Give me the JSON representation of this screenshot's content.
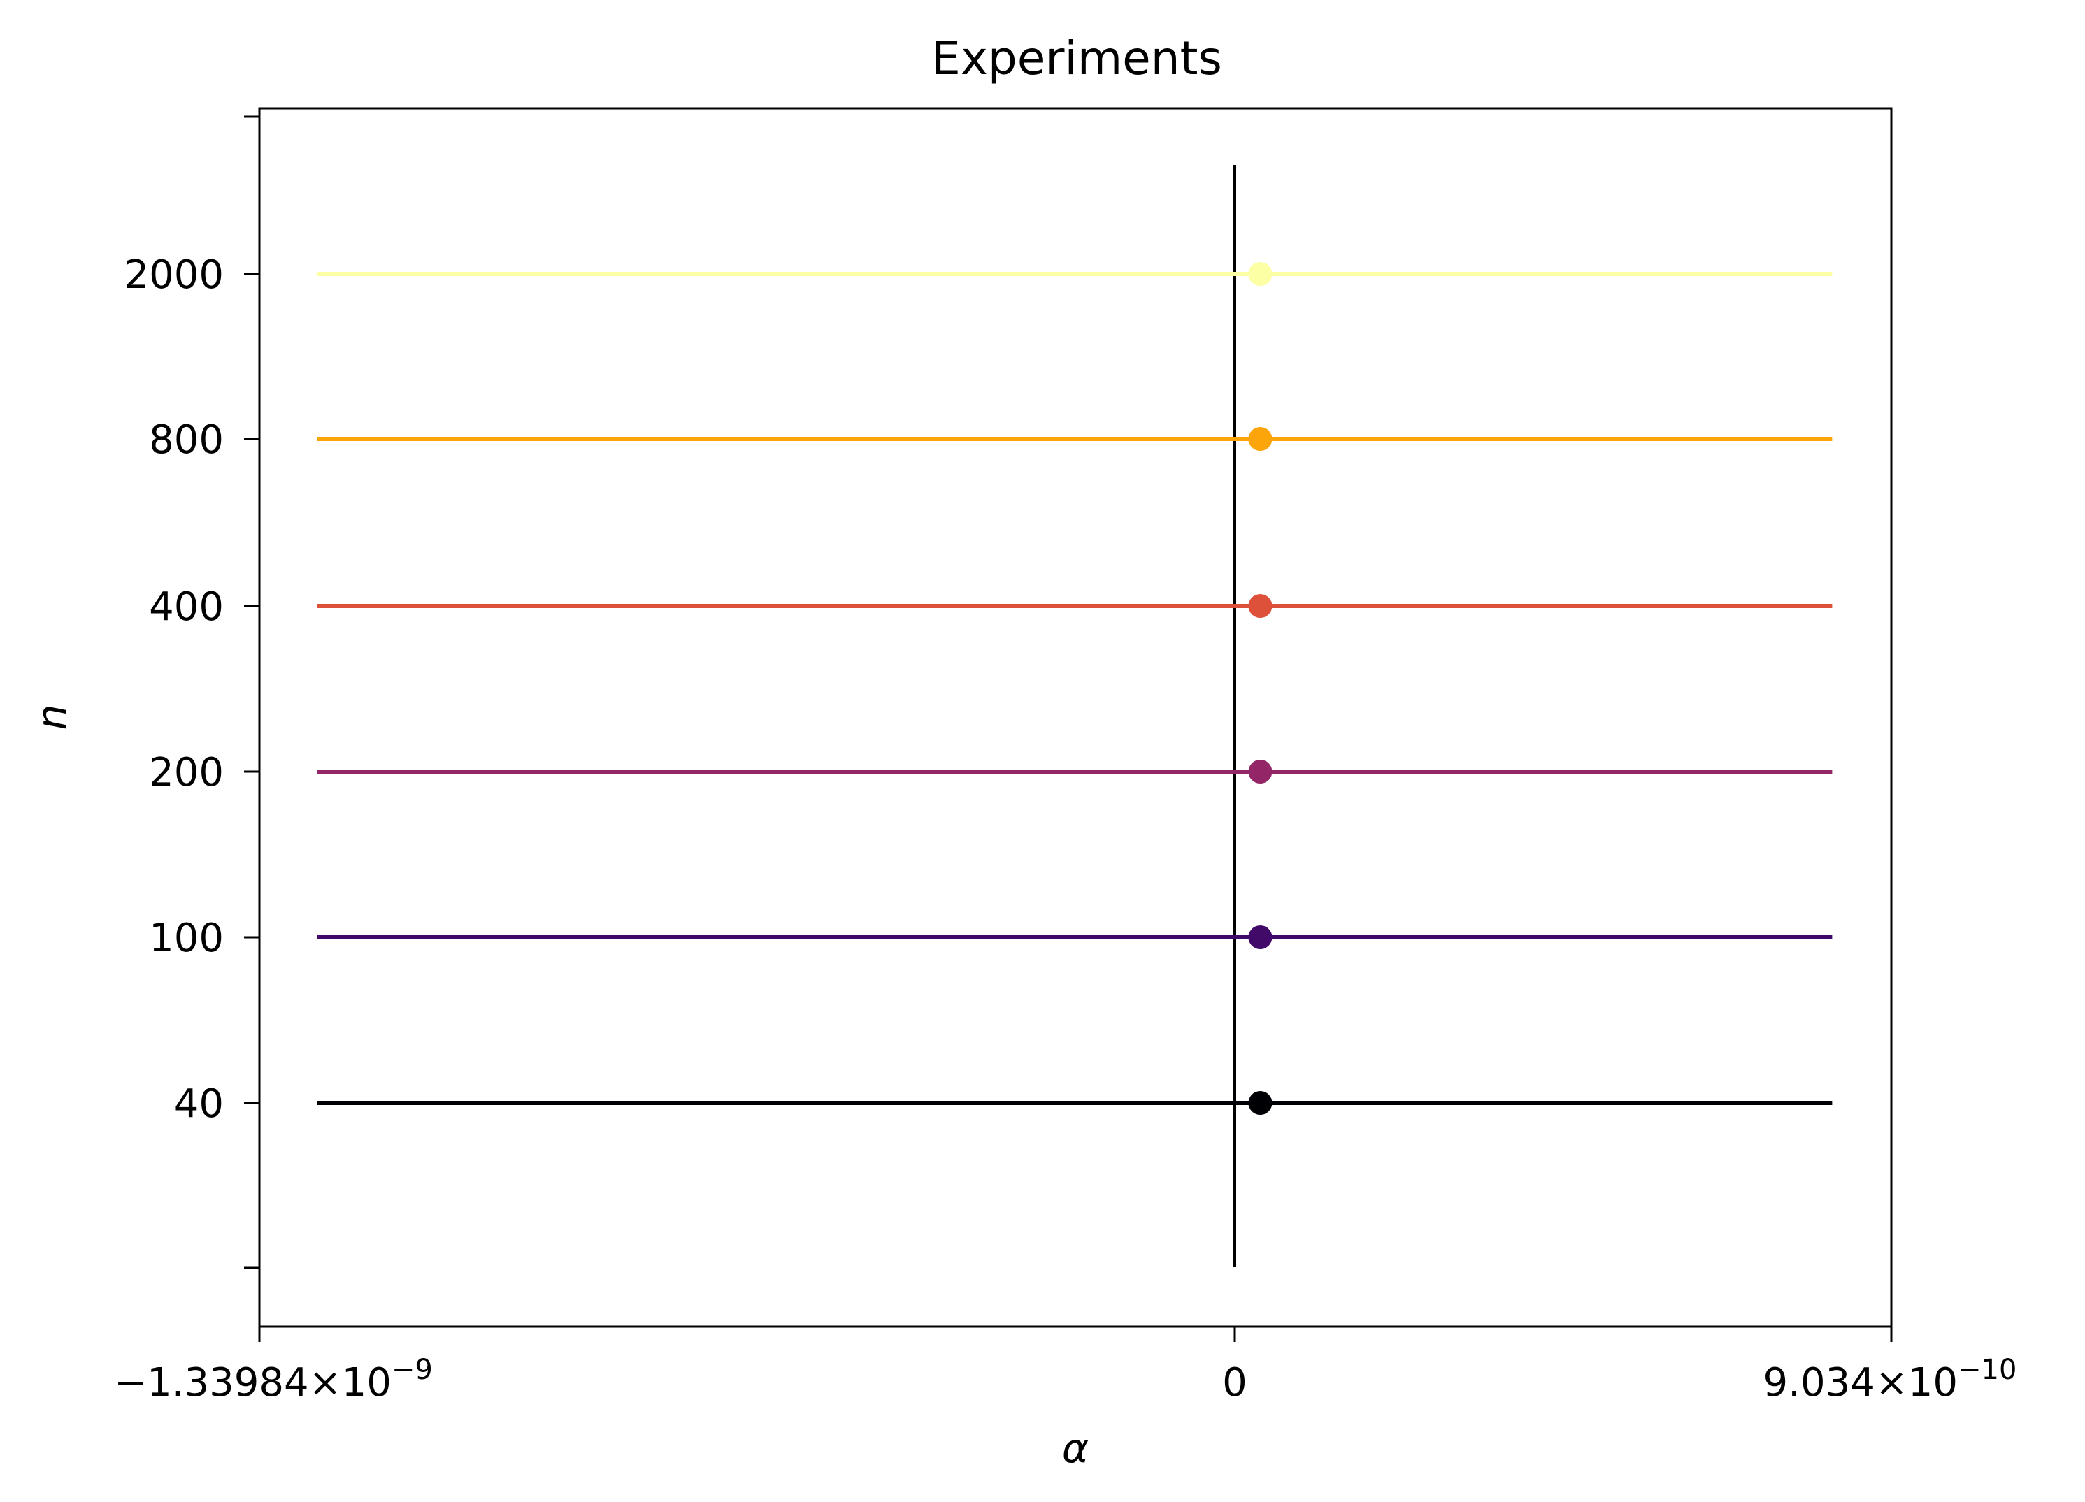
{
  "chart_data": {
    "type": "scatter",
    "title": "Experiments",
    "xlabel": "α",
    "ylabel": "n",
    "x_ticks": [
      {
        "mantissa": "−1.33984",
        "exponent": "−9"
      },
      {
        "plain": "0"
      },
      {
        "mantissa": "9.034",
        "exponent": "−10"
      }
    ],
    "y_ticks": [
      "2000",
      "800",
      "400",
      "200",
      "100",
      "40"
    ],
    "reference_line": {
      "x": 0,
      "color": "#000000"
    },
    "grid": false,
    "legend": "none",
    "series": [
      {
        "n": "40",
        "alpha": 3.5e-11,
        "x_range": [
          -1.26e-09,
          8.2e-10
        ],
        "color": "#000004"
      },
      {
        "n": "100",
        "alpha": 3.5e-11,
        "x_range": [
          -1.26e-09,
          8.2e-10
        ],
        "color": "#420a68"
      },
      {
        "n": "200",
        "alpha": 3.5e-11,
        "x_range": [
          -1.26e-09,
          8.2e-10
        ],
        "color": "#932667"
      },
      {
        "n": "400",
        "alpha": 3.5e-11,
        "x_range": [
          -1.26e-09,
          8.2e-10
        ],
        "color": "#dd513a"
      },
      {
        "n": "800",
        "alpha": 3.5e-11,
        "x_range": [
          -1.26e-09,
          8.2e-10
        ],
        "color": "#fca50a"
      },
      {
        "n": "2000",
        "alpha": 3.5e-11,
        "x_range": [
          -1.26e-09,
          8.2e-10
        ],
        "color": "#fcffa4"
      }
    ]
  }
}
